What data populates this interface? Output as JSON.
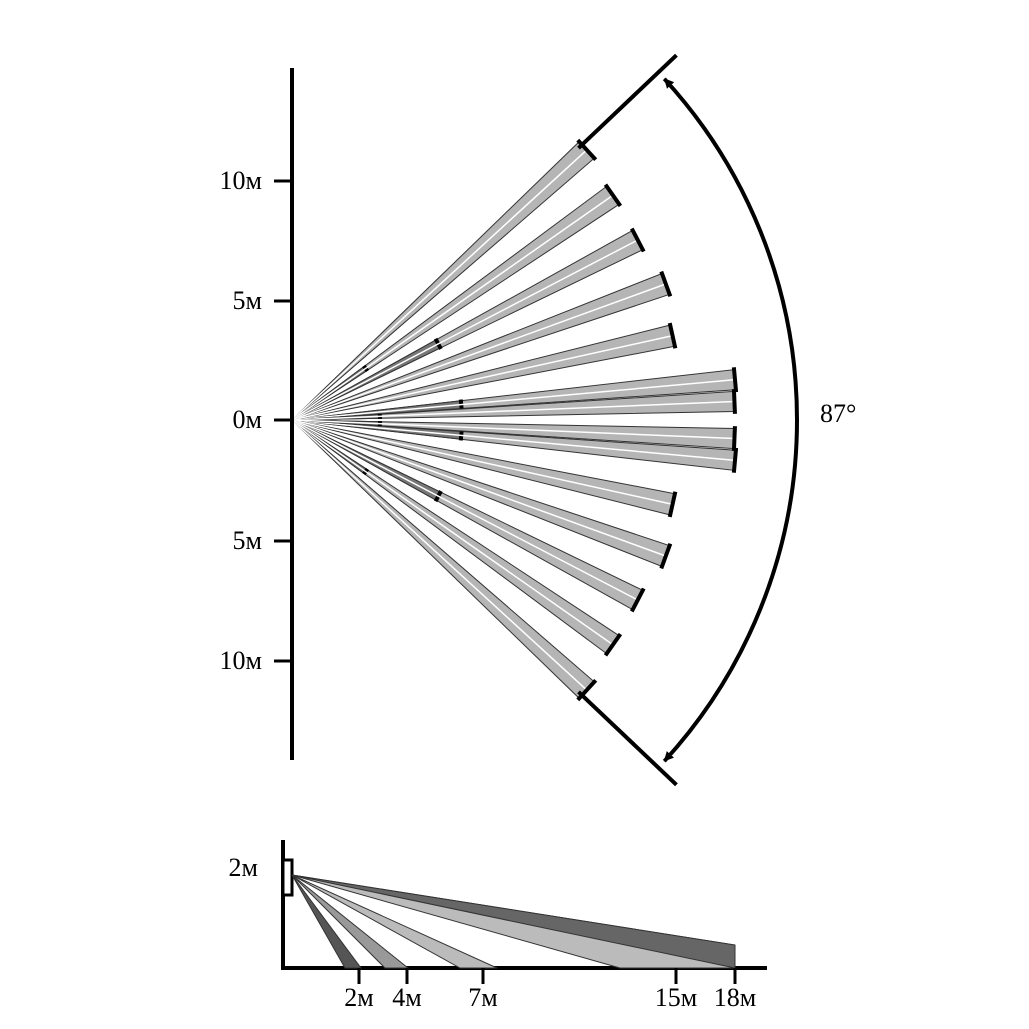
{
  "top_view": {
    "y_ticks": [
      "10м",
      "5м",
      "0м",
      "5м",
      "10м"
    ],
    "angle_label": "87°"
  },
  "side_view": {
    "height_label": "2м",
    "x_ticks": [
      "2м",
      "4м",
      "7м",
      "15м",
      "18м"
    ]
  }
}
